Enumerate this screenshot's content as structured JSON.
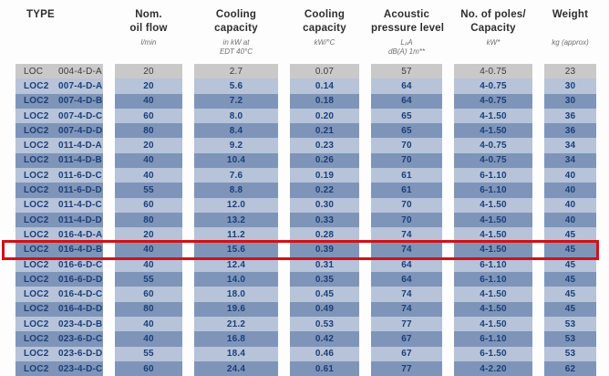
{
  "colors": {
    "row_light": "#b6c3d9",
    "row_dark": "#7e95b9",
    "row_gray": "#c9c9c9",
    "text_navy": "#1c3e78",
    "text_gray": "#3c3c3c",
    "header_text": "#2e2e2e",
    "sub_text": "#6e6e6e",
    "highlight_red": "#d01215",
    "page_background": "#fdfdfd"
  },
  "table": {
    "columns": [
      {
        "id": "type",
        "label_lines": [
          "TYPE"
        ],
        "sub_lines": []
      },
      {
        "id": "oil-flow",
        "label_lines": [
          "Nom.",
          "oil flow"
        ],
        "sub_lines": [
          "l/min"
        ]
      },
      {
        "id": "cooling-kw",
        "label_lines": [
          "Cooling",
          "capacity"
        ],
        "sub_lines": [
          "in kW at",
          "EDT 40°C"
        ]
      },
      {
        "id": "cooling-kwc",
        "label_lines": [
          "Cooling",
          "capacity"
        ],
        "sub_lines": [
          "kW/°C"
        ]
      },
      {
        "id": "acoustic",
        "label_lines": [
          "Acoustic",
          "pressure level"
        ],
        "sub_lines": [
          "LₚA",
          "dB(A) 1m**"
        ]
      },
      {
        "id": "poles",
        "label_lines": [
          "No. of poles/",
          "Capacity"
        ],
        "sub_lines": [
          "kW*"
        ]
      },
      {
        "id": "weight",
        "label_lines": [
          "Weight"
        ],
        "sub_lines": [
          "kg (approx)"
        ]
      }
    ],
    "rows": [
      {
        "series": "LOC",
        "code": "004-4-D-A",
        "values": [
          "20",
          "2.7",
          "0.07",
          "57",
          "4-0.75",
          "23"
        ],
        "variant": "gray",
        "highlighted": false
      },
      {
        "series": "LOC2",
        "code": "007-4-D-A",
        "values": [
          "20",
          "5.6",
          "0.14",
          "64",
          "4-0.75",
          "30"
        ],
        "variant": "light",
        "highlighted": false
      },
      {
        "series": "LOC2",
        "code": "007-4-D-B",
        "values": [
          "40",
          "7.2",
          "0.18",
          "64",
          "4-0.75",
          "30"
        ],
        "variant": "dark",
        "highlighted": false
      },
      {
        "series": "LOC2",
        "code": "007-4-D-C",
        "values": [
          "60",
          "8.0",
          "0.20",
          "65",
          "4-1.50",
          "36"
        ],
        "variant": "light",
        "highlighted": false
      },
      {
        "series": "LOC2",
        "code": "007-4-D-D",
        "values": [
          "80",
          "8.4",
          "0.21",
          "65",
          "4-1.50",
          "36"
        ],
        "variant": "dark",
        "highlighted": false
      },
      {
        "series": "LOC2",
        "code": "011-4-D-A",
        "values": [
          "20",
          "9.2",
          "0.23",
          "70",
          "4-0.75",
          "34"
        ],
        "variant": "light",
        "highlighted": false
      },
      {
        "series": "LOC2",
        "code": "011-4-D-B",
        "values": [
          "40",
          "10.4",
          "0.26",
          "70",
          "4-0.75",
          "34"
        ],
        "variant": "dark",
        "highlighted": false
      },
      {
        "series": "LOC2",
        "code": "011-6-D-C",
        "values": [
          "40",
          "7.6",
          "0.19",
          "61",
          "6-1.10",
          "40"
        ],
        "variant": "light",
        "highlighted": false
      },
      {
        "series": "LOC2",
        "code": "011-6-D-D",
        "values": [
          "55",
          "8.8",
          "0.22",
          "61",
          "6-1.10",
          "40"
        ],
        "variant": "dark",
        "highlighted": false
      },
      {
        "series": "LOC2",
        "code": "011-4-D-C",
        "values": [
          "60",
          "12.0",
          "0.30",
          "70",
          "4-1.50",
          "40"
        ],
        "variant": "light",
        "highlighted": false
      },
      {
        "series": "LOC2",
        "code": "011-4-D-D",
        "values": [
          "80",
          "13.2",
          "0.33",
          "70",
          "4-1.50",
          "40"
        ],
        "variant": "dark",
        "highlighted": false
      },
      {
        "series": "LOC2",
        "code": "016-4-D-A",
        "values": [
          "20",
          "11.2",
          "0.28",
          "74",
          "4-1.50",
          "45"
        ],
        "variant": "light",
        "highlighted": false
      },
      {
        "series": "LOC2",
        "code": "016-4-D-B",
        "values": [
          "40",
          "15.6",
          "0.39",
          "74",
          "4-1.50",
          "45"
        ],
        "variant": "dark",
        "highlighted": true
      },
      {
        "series": "LOC2",
        "code": "016-6-D-C",
        "values": [
          "40",
          "12.4",
          "0.31",
          "64",
          "6-1.10",
          "45"
        ],
        "variant": "light",
        "highlighted": false
      },
      {
        "series": "LOC2",
        "code": "016-6-D-D",
        "values": [
          "55",
          "14.0",
          "0.35",
          "64",
          "6-1.10",
          "45"
        ],
        "variant": "dark",
        "highlighted": false
      },
      {
        "series": "LOC2",
        "code": "016-4-D-C",
        "values": [
          "60",
          "18.0",
          "0.45",
          "74",
          "4-1.50",
          "45"
        ],
        "variant": "light",
        "highlighted": false
      },
      {
        "series": "LOC2",
        "code": "016-4-D-D",
        "values": [
          "80",
          "19.6",
          "0.49",
          "74",
          "4-1.50",
          "45"
        ],
        "variant": "dark",
        "highlighted": false
      },
      {
        "series": "LOC2",
        "code": "023-4-D-B",
        "values": [
          "40",
          "21.2",
          "0.53",
          "77",
          "4-1.50",
          "53"
        ],
        "variant": "light",
        "highlighted": false
      },
      {
        "series": "LOC2",
        "code": "023-6-D-C",
        "values": [
          "40",
          "16.8",
          "0.42",
          "67",
          "6-1.10",
          "53"
        ],
        "variant": "dark",
        "highlighted": false
      },
      {
        "series": "LOC2",
        "code": "023-6-D-D",
        "values": [
          "55",
          "18.4",
          "0.46",
          "67",
          "6-1.50",
          "53"
        ],
        "variant": "light",
        "highlighted": false
      },
      {
        "series": "LOC2",
        "code": "023-4-D-C",
        "values": [
          "60",
          "24.4",
          "0.61",
          "77",
          "4-2.20",
          "62"
        ],
        "variant": "dark",
        "highlighted": false
      }
    ]
  }
}
